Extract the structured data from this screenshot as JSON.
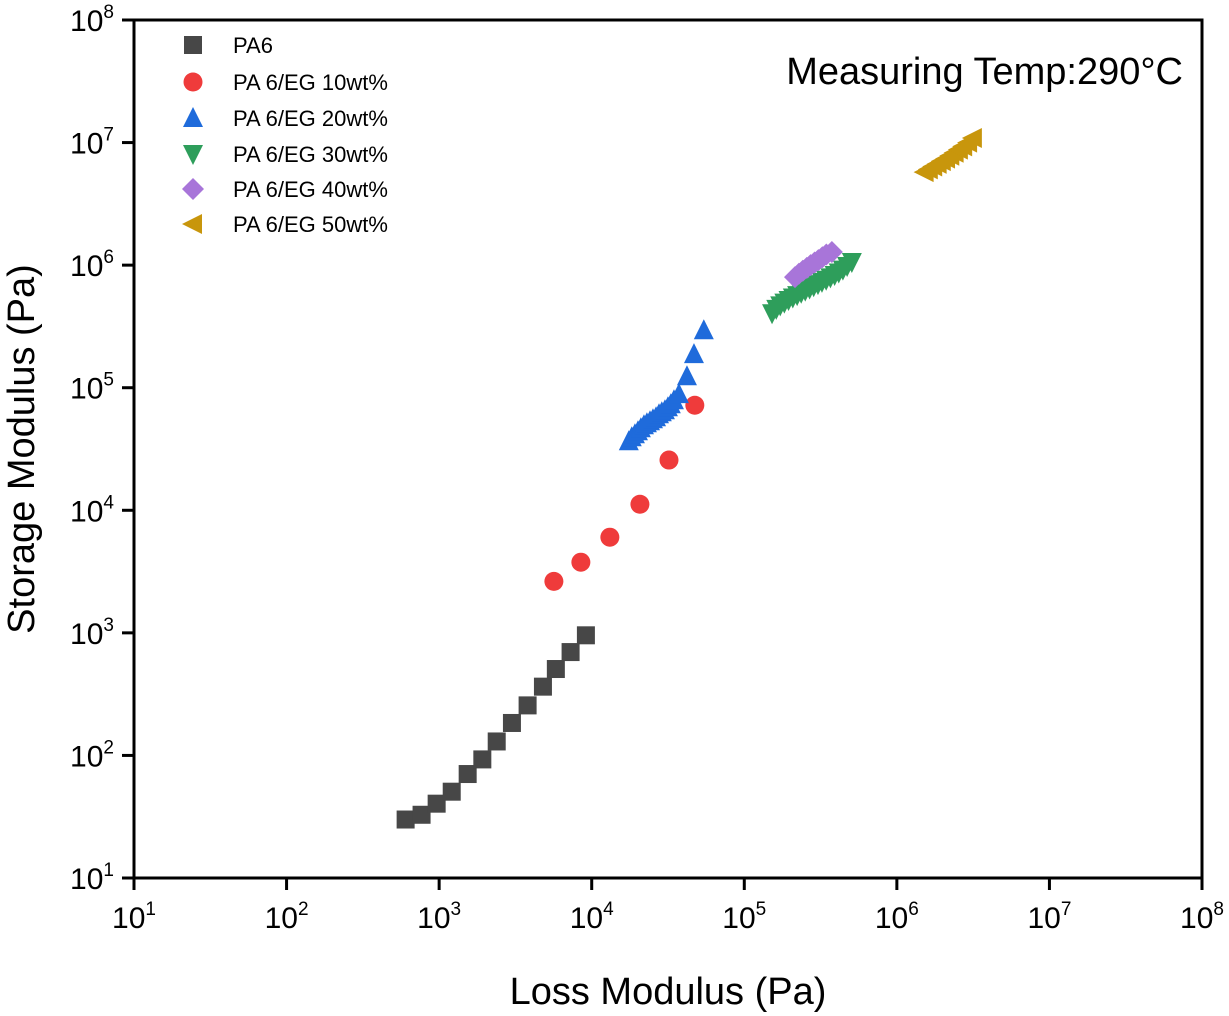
{
  "chart_data": {
    "type": "scatter",
    "title": "",
    "xlabel": "Loss Modulus (Pa)",
    "ylabel": "Storage Modulus (Pa)",
    "xscale": "log",
    "yscale": "log",
    "xlim": [
      10,
      100000000
    ],
    "ylim": [
      10,
      100000000
    ],
    "x_ticks": [
      {
        "base": "10",
        "exp": "1",
        "value": 10
      },
      {
        "base": "10",
        "exp": "2",
        "value": 100
      },
      {
        "base": "10",
        "exp": "3",
        "value": 1000
      },
      {
        "base": "10",
        "exp": "4",
        "value": 10000
      },
      {
        "base": "10",
        "exp": "5",
        "value": 100000
      },
      {
        "base": "10",
        "exp": "6",
        "value": 1000000
      },
      {
        "base": "10",
        "exp": "7",
        "value": 10000000
      },
      {
        "base": "10",
        "exp": "8",
        "value": 100000000
      }
    ],
    "y_ticks": [
      {
        "base": "10",
        "exp": "1",
        "value": 10
      },
      {
        "base": "10",
        "exp": "2",
        "value": 100
      },
      {
        "base": "10",
        "exp": "3",
        "value": 1000
      },
      {
        "base": "10",
        "exp": "4",
        "value": 10000
      },
      {
        "base": "10",
        "exp": "5",
        "value": 100000
      },
      {
        "base": "10",
        "exp": "6",
        "value": 1000000
      },
      {
        "base": "10",
        "exp": "7",
        "value": 10000000
      },
      {
        "base": "10",
        "exp": "8",
        "value": 100000000
      }
    ],
    "grid": false,
    "legend_position": "top-left",
    "annotation": "Measuring Temp:290°C",
    "series": [
      {
        "name": "PA6",
        "marker": "square",
        "color": "#474747",
        "x": [
          603,
          767,
          963,
          1209,
          1538,
          1919,
          2384,
          3000,
          3800,
          4790,
          5820,
          7270,
          9160
        ],
        "y": [
          30,
          32.8,
          40.4,
          50.6,
          70.5,
          92.8,
          130,
          184,
          256,
          364,
          507,
          697,
          955
        ]
      },
      {
        "name": "PA 6/EG 10wt%",
        "marker": "circle",
        "color": "#EF3B3B",
        "x": [
          5650,
          8490,
          13150,
          20700,
          32100,
          47400
        ],
        "y": [
          2630,
          3770,
          6030,
          11200,
          25700,
          71900
        ]
      },
      {
        "name": "PA 6/EG 20wt%",
        "marker": "triangle-up",
        "color": "#1F6BDB",
        "x": [
          17500,
          18300,
          19200,
          20100,
          21000,
          22000,
          23000,
          24100,
          25200,
          26400,
          27600,
          28800,
          30200,
          31600,
          33000,
          34600,
          37300,
          42100,
          46800,
          54300
        ],
        "y": [
          36600,
          39400,
          41700,
          44100,
          46700,
          49400,
          51300,
          53300,
          55300,
          57400,
          60800,
          63100,
          65500,
          69300,
          73300,
          79100,
          88600,
          124000,
          188000,
          294000
        ]
      },
      {
        "name": "PA 6/EG 30wt%",
        "marker": "triangle-down",
        "color": "#2E9E5B",
        "x": [
          152000,
          162000,
          172000,
          183000,
          195000,
          208000,
          222000,
          236000,
          251000,
          268000,
          285000,
          304000,
          323000,
          344000,
          367000,
          391000,
          416000,
          443000,
          472000,
          507000
        ],
        "y": [
          405000,
          440000,
          470000,
          495000,
          520000,
          545000,
          570000,
          595000,
          620000,
          645000,
          672000,
          700000,
          730000,
          760000,
          795000,
          830000,
          870000,
          920000,
          985000,
          1060000
        ]
      },
      {
        "name": "PA 6/EG 40wt%",
        "marker": "diamond",
        "color": "#A875D9",
        "x": [
          215000,
          228000,
          242000,
          257000,
          272000,
          289000,
          306000,
          325000,
          345000,
          375000
        ],
        "y": [
          798000,
          850000,
          900000,
          950000,
          1000000,
          1050000,
          1100000,
          1160000,
          1220000,
          1280000
        ]
      },
      {
        "name": "PA 6/EG 50wt%",
        "marker": "triangle-left",
        "color": "#C8960C",
        "x": [
          1520000,
          1620000,
          1730000,
          1850000,
          1970000,
          2100000,
          2240000,
          2390000,
          2550000,
          2720000,
          2930000,
          3150000
        ],
        "y": [
          5740000,
          6050000,
          6380000,
          6700000,
          7050000,
          7400000,
          7800000,
          8250000,
          8750000,
          9300000,
          10000000,
          10900000
        ]
      }
    ]
  }
}
